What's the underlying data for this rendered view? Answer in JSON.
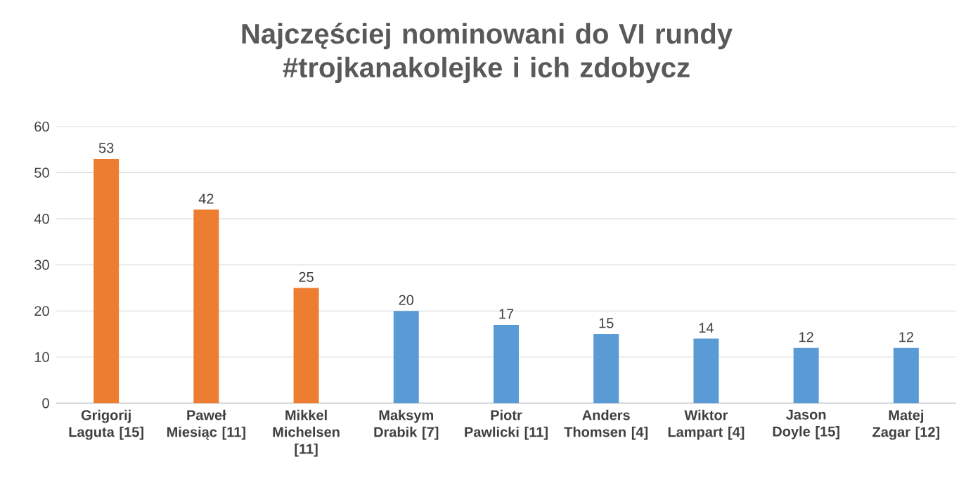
{
  "chart_data": {
    "type": "bar",
    "title": "Najczęściej nominowani do VI rundy #trojkanakolejke i ich zdobycz",
    "categories": [
      "Grigorij Laguta [15]",
      "Paweł Miesiąc [11]",
      "Mikkel Michelsen [11]",
      "Maksym Drabik [7]",
      "Piotr Pawlicki [11]",
      "Anders Thomsen [4]",
      "Wiktor Lampart [4]",
      "Jason Doyle [15]",
      "Matej Zagar [12]"
    ],
    "values": [
      53,
      42,
      25,
      20,
      17,
      15,
      14,
      12,
      12
    ],
    "colors": [
      "#ed7d31",
      "#ed7d31",
      "#ed7d31",
      "#5b9bd5",
      "#5b9bd5",
      "#5b9bd5",
      "#5b9bd5",
      "#5b9bd5",
      "#5b9bd5"
    ],
    "ylim": [
      0,
      60
    ],
    "yticks": [
      0,
      10,
      20,
      30,
      40,
      50,
      60
    ],
    "grid": "y",
    "data_labels": true
  }
}
